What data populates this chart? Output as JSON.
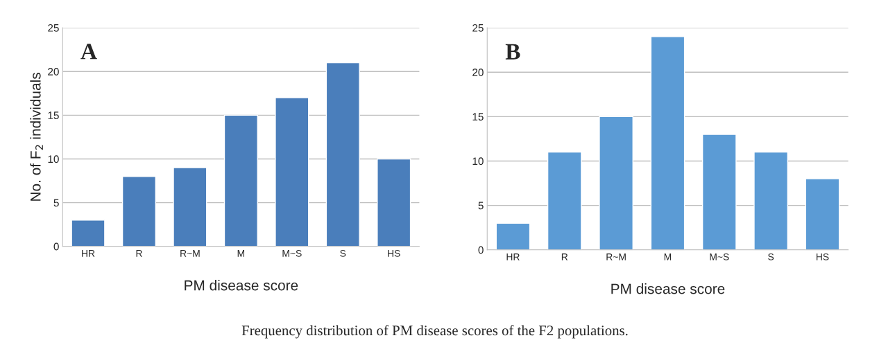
{
  "chart_data": [
    {
      "type": "bar",
      "categories": [
        "HR",
        "R",
        "R~M",
        "M",
        "M~S",
        "S",
        "HS"
      ],
      "values": [
        3,
        8,
        9,
        15,
        17,
        21,
        10
      ],
      "color": "#4a7ebb",
      "xlabel": "PM disease score",
      "ylabel": "No. of F$_{2}$ individuals",
      "ylim": [
        0,
        25
      ],
      "yticks": [
        0,
        5,
        10,
        15,
        20,
        25
      ],
      "grid": "y",
      "annotations": [
        "A",
        "Frequency distribution of PM disease scores of the F2 populations."
      ]
    },
    {
      "type": "bar",
      "categories": [
        "HR",
        "R",
        "R~M",
        "M",
        "M~S",
        "S",
        "HS"
      ],
      "values": [
        3,
        11,
        15,
        24,
        13,
        11,
        8
      ],
      "color": "#5b9bd5",
      "xlabel": "PM disease score",
      "ylim": [
        0,
        25
      ],
      "yticks": [
        0,
        5,
        10,
        15,
        20,
        25
      ],
      "grid": "y",
      "annotations": [
        "B"
      ]
    }
  ]
}
